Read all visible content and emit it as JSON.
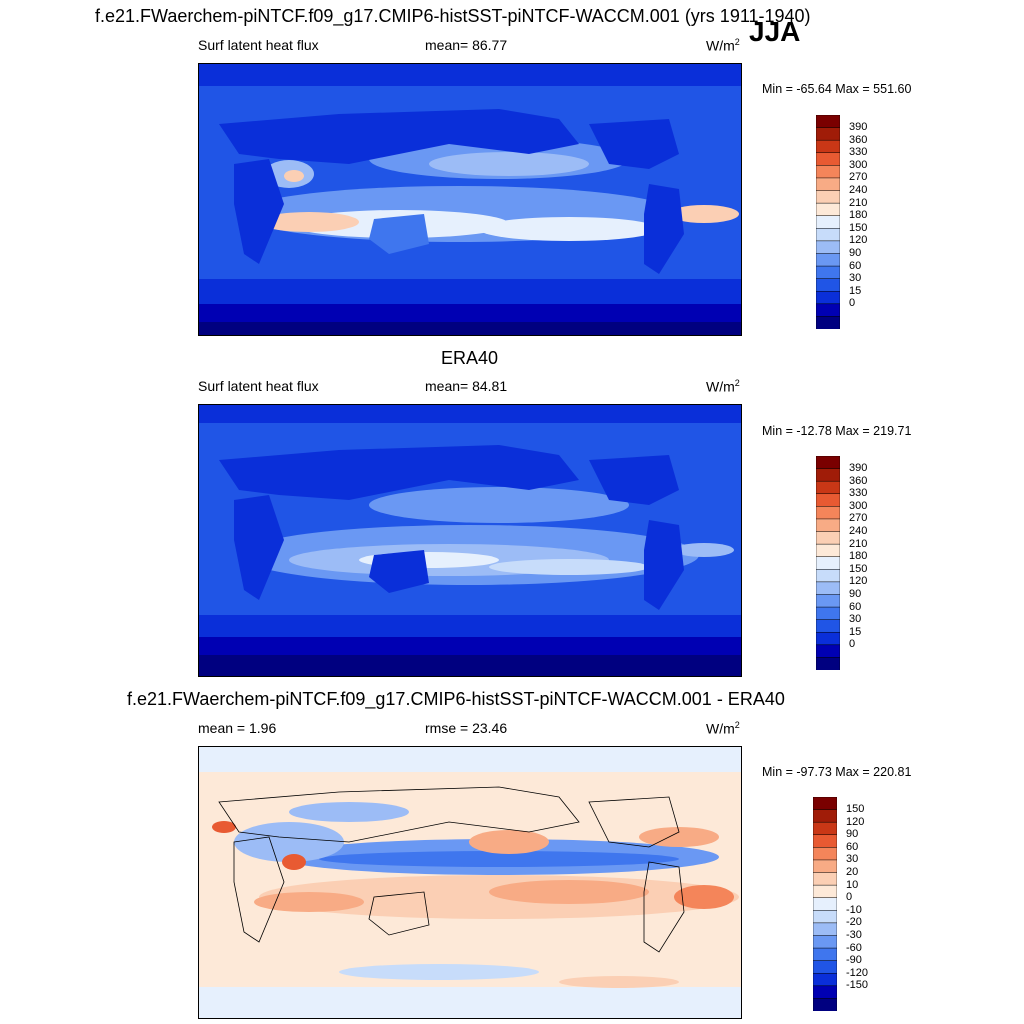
{
  "figure": {
    "title": "f.e21.FWaerchem-piNTCF.f09_g17.CMIP6-histSST-piNTCF-WACCM.001 (yrs 1911-1940)",
    "season": "JJA"
  },
  "colors": {
    "seq": [
      "#000080",
      "#0000b3",
      "#0a2fd9",
      "#2055e6",
      "#3f76ee",
      "#6a98f3",
      "#9cbcf6",
      "#c7dcfa",
      "#e6f0fd",
      "#fde9d8",
      "#fbcfb4",
      "#f8ab85",
      "#f4855a",
      "#e85a32",
      "#c93716",
      "#a01c08",
      "#7a0000"
    ],
    "diff": [
      "#000080",
      "#0000b3",
      "#0a2fd9",
      "#2055e6",
      "#3f76ee",
      "#6a98f3",
      "#9cbcf6",
      "#c7dcfa",
      "#e6f0fd",
      "#fde9d8",
      "#fbcfb4",
      "#f8ab85",
      "#f4855a",
      "#e85a32",
      "#c93716",
      "#a01c08",
      "#7a0000"
    ]
  },
  "panels": [
    {
      "id": "model",
      "subtitle": "",
      "left": "Surf latent heat flux",
      "stat": "mean=  86.77",
      "units": "W/m",
      "units_sup": "2",
      "minmax": "Min = -65.64 Max = 551.60",
      "levels": [
        "390",
        "360",
        "330",
        "300",
        "270",
        "240",
        "210",
        "180",
        "150",
        "120",
        "90",
        "60",
        "30",
        "15",
        "0"
      ]
    },
    {
      "id": "obs",
      "subtitle": "ERA40",
      "left": "Surf latent heat flux",
      "stat": "mean=  84.81",
      "units": "W/m",
      "units_sup": "2",
      "minmax": "Min = -12.78 Max = 219.71",
      "levels": [
        "390",
        "360",
        "330",
        "300",
        "270",
        "240",
        "210",
        "180",
        "150",
        "120",
        "90",
        "60",
        "30",
        "15",
        "0"
      ]
    },
    {
      "id": "diff",
      "subtitle": "f.e21.FWaerchem-piNTCF.f09_g17.CMIP6-histSST-piNTCF-WACCM.001 - ERA40",
      "left": "mean =   1.96",
      "stat": "rmse =  23.46",
      "units": "W/m",
      "units_sup": "2",
      "minmax": "Min = -97.73 Max = 220.81",
      "levels": [
        "150",
        "120",
        "90",
        "60",
        "30",
        "20",
        "10",
        "0",
        "-10",
        "-20",
        "-30",
        "-60",
        "-90",
        "-120",
        "-150"
      ]
    }
  ]
}
